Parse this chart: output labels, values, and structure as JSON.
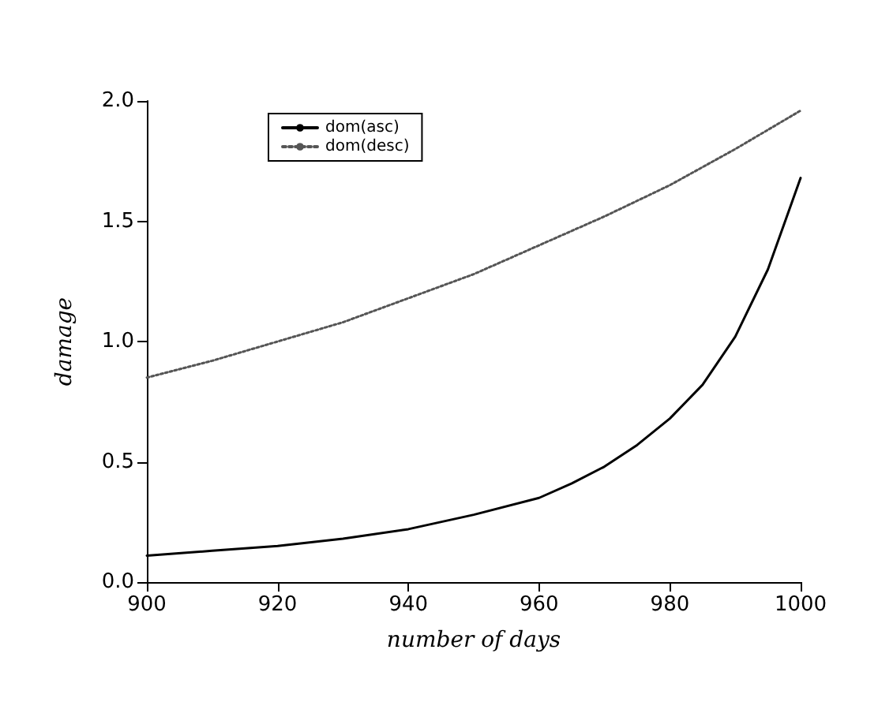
{
  "chart_data": {
    "type": "line",
    "xlabel": "number of days",
    "ylabel": "damage",
    "xlim": [
      900,
      1000
    ],
    "xticks": [
      900,
      920,
      940,
      960,
      980,
      1000
    ],
    "ylim": [
      0,
      2
    ],
    "yticks": [
      {
        "value": 0,
        "label": "0.0"
      },
      {
        "value": 0.5,
        "label": "0.5"
      },
      {
        "value": 1,
        "label": "1.0"
      },
      {
        "value": 1.5,
        "label": "1.5"
      },
      {
        "value": 2,
        "label": "2.0"
      }
    ],
    "legend": "top left",
    "grid": false,
    "marker": "none",
    "series": [
      {
        "name": "dom(asc)",
        "color": "#000000",
        "line_style": "solid",
        "x": [
          900,
          910,
          920,
          930,
          940,
          950,
          960,
          965,
          970,
          975,
          980,
          985,
          990,
          995,
          1000
        ],
        "values": [
          0.11,
          0.13,
          0.15,
          0.18,
          0.22,
          0.28,
          0.35,
          0.41,
          0.48,
          0.57,
          0.68,
          0.82,
          1.02,
          1.3,
          1.68
        ]
      },
      {
        "name": "dom(desc)",
        "color": "#555555",
        "line_style": "dotted",
        "x": [
          900,
          910,
          920,
          930,
          940,
          950,
          960,
          970,
          980,
          990,
          1000
        ],
        "values": [
          0.85,
          0.92,
          1.0,
          1.08,
          1.18,
          1.28,
          1.4,
          1.52,
          1.65,
          1.8,
          1.96
        ]
      }
    ]
  }
}
